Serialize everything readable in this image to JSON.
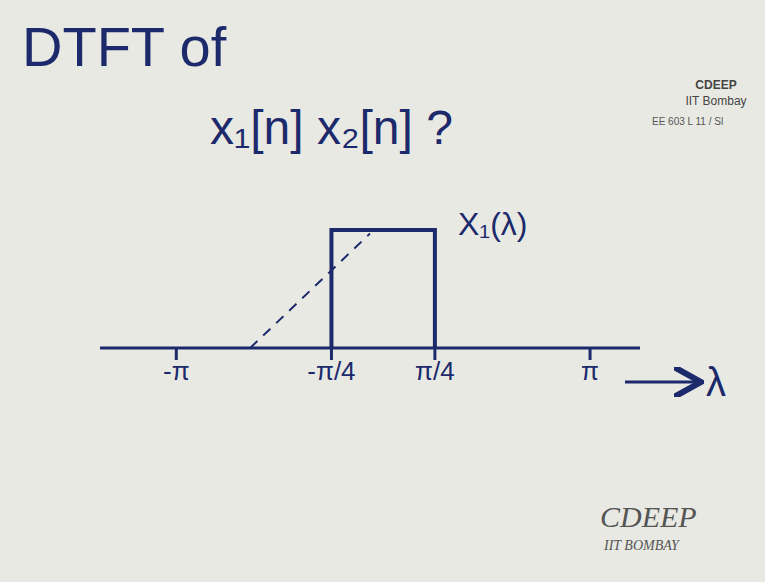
{
  "chart_data": {
    "type": "line",
    "title": "DTFT of",
    "subtitle": "x₁[n] x₂[n] ?",
    "xlabel": "λ",
    "xlim": [
      -4.3,
      3.9
    ],
    "xticks": [
      {
        "value": -3.1416,
        "label": "-π"
      },
      {
        "value": -0.7854,
        "label": "-π/4"
      },
      {
        "value": 0.7854,
        "label": "π/4"
      },
      {
        "value": 3.1416,
        "label": "π"
      }
    ],
    "ylim": [
      0,
      1.5
    ],
    "tick_labels": "x",
    "grid": false,
    "series": [
      {
        "name": "X₁(λ)",
        "color": "#1c2a6b",
        "line_style": "solid",
        "x": [
          -0.7854,
          -0.7854,
          0.7854,
          0.7854
        ],
        "values": [
          0,
          1,
          1,
          0
        ]
      },
      {
        "color": "#1c2a6b",
        "line_style": "dashed",
        "x": [
          -2.02,
          -0.2
        ],
        "values": [
          0,
          0.97
        ]
      }
    ],
    "annotations": [
      "CDEEP",
      "IIT Bombay",
      "EE 603 L 11 / Sl",
      "CDEEP",
      "IIT BOMBAY"
    ]
  }
}
